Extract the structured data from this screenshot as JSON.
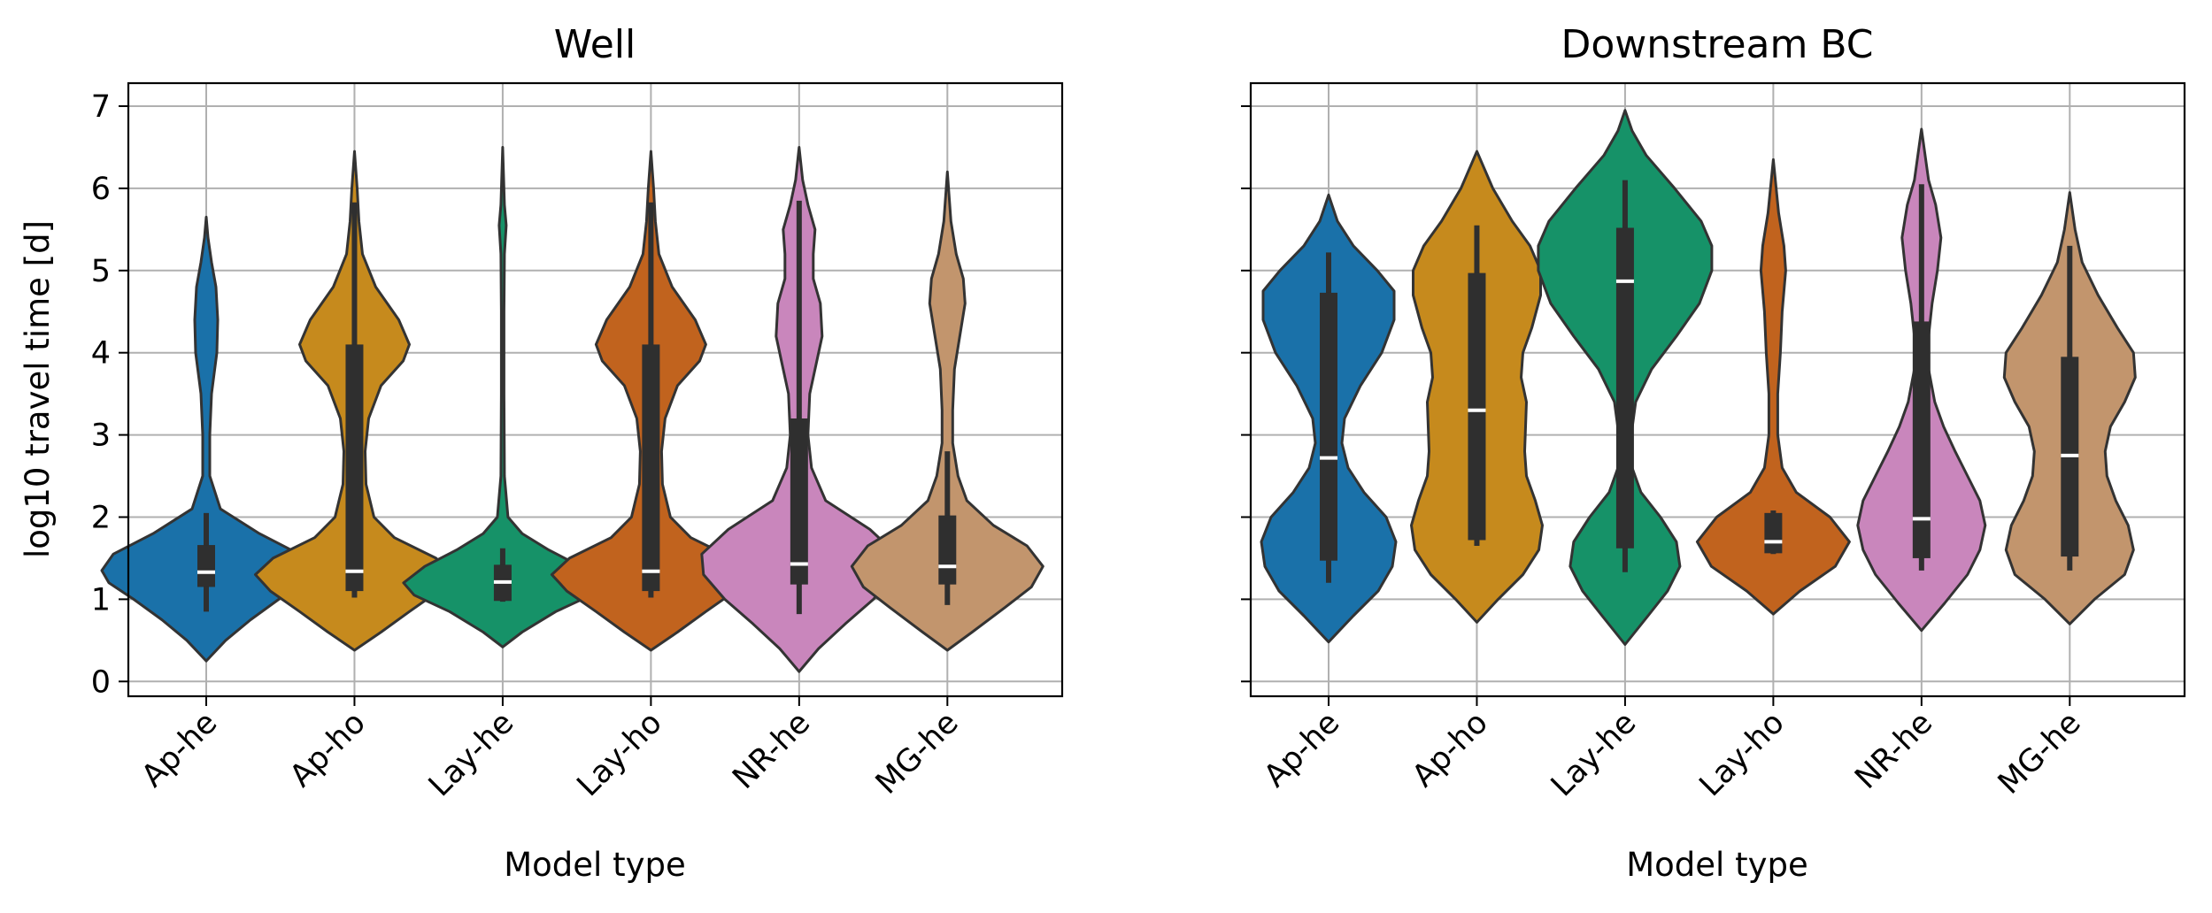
{
  "chart_data": [
    {
      "type": "violin",
      "title": "Well",
      "xlabel": "Model type",
      "ylabel": "log10 travel time [d]",
      "ylim": [
        -0.18,
        7.28
      ],
      "yticks": [
        0,
        1,
        2,
        3,
        4,
        5,
        6,
        7
      ],
      "grid": true,
      "categories": [
        "Ap-he",
        "Ap-ho",
        "Lay-he",
        "Lay-ho",
        "NR-he",
        "MG-he"
      ],
      "colors": [
        "#1a71a9",
        "#c68a1d",
        "#169268",
        "#c1631e",
        "#c986bc",
        "#c2956d"
      ],
      "violins": [
        {
          "min": 0.85,
          "q1": 1.15,
          "median": 1.33,
          "q3": 1.66,
          "max": 2.05,
          "range": [
            0.25,
            5.65
          ],
          "profile": [
            [
              0.25,
              0
            ],
            [
              0.5,
              22
            ],
            [
              0.75,
              50
            ],
            [
              1.0,
              82
            ],
            [
              1.2,
              110
            ],
            [
              1.35,
              118
            ],
            [
              1.55,
              105
            ],
            [
              1.8,
              60
            ],
            [
              2.1,
              16
            ],
            [
              2.5,
              4
            ],
            [
              3.0,
              4
            ],
            [
              3.5,
              6
            ],
            [
              4.0,
              12
            ],
            [
              4.4,
              13
            ],
            [
              4.8,
              11
            ],
            [
              5.1,
              6
            ],
            [
              5.4,
              2
            ],
            [
              5.65,
              0
            ]
          ]
        },
        {
          "min": 1.02,
          "q1": 1.1,
          "median": 1.34,
          "q3": 4.1,
          "max": 5.83,
          "range": [
            0.38,
            6.45
          ],
          "profile": [
            [
              0.38,
              0
            ],
            [
              0.6,
              30
            ],
            [
              0.85,
              62
            ],
            [
              1.1,
              95
            ],
            [
              1.3,
              112
            ],
            [
              1.5,
              92
            ],
            [
              1.75,
              45
            ],
            [
              2.0,
              22
            ],
            [
              2.4,
              13
            ],
            [
              2.8,
              12
            ],
            [
              3.2,
              16
            ],
            [
              3.6,
              30
            ],
            [
              3.9,
              55
            ],
            [
              4.1,
              62
            ],
            [
              4.4,
              50
            ],
            [
              4.8,
              24
            ],
            [
              5.2,
              9
            ],
            [
              5.6,
              5
            ],
            [
              6.0,
              3
            ],
            [
              6.45,
              0
            ]
          ]
        },
        {
          "min": 0.97,
          "q1": 0.98,
          "median": 1.21,
          "q3": 1.42,
          "max": 1.62,
          "range": [
            0.42,
            6.5
          ],
          "profile": [
            [
              0.42,
              0
            ],
            [
              0.6,
              22
            ],
            [
              0.85,
              60
            ],
            [
              1.05,
              100
            ],
            [
              1.2,
              112
            ],
            [
              1.4,
              88
            ],
            [
              1.6,
              52
            ],
            [
              1.8,
              22
            ],
            [
              2.0,
              6
            ],
            [
              2.5,
              2
            ],
            [
              3.5,
              1.5
            ],
            [
              4.5,
              1.5
            ],
            [
              5.2,
              2
            ],
            [
              5.55,
              4
            ],
            [
              5.8,
              2
            ],
            [
              6.5,
              0
            ]
          ]
        },
        {
          "min": 1.02,
          "q1": 1.1,
          "median": 1.34,
          "q3": 4.1,
          "max": 5.83,
          "range": [
            0.38,
            6.45
          ],
          "profile": [
            [
              0.38,
              0
            ],
            [
              0.6,
              30
            ],
            [
              0.85,
              62
            ],
            [
              1.1,
              95
            ],
            [
              1.3,
              112
            ],
            [
              1.5,
              92
            ],
            [
              1.75,
              45
            ],
            [
              2.0,
              22
            ],
            [
              2.4,
              13
            ],
            [
              2.8,
              12
            ],
            [
              3.2,
              16
            ],
            [
              3.6,
              30
            ],
            [
              3.9,
              55
            ],
            [
              4.1,
              62
            ],
            [
              4.4,
              50
            ],
            [
              4.8,
              24
            ],
            [
              5.2,
              9
            ],
            [
              5.6,
              5
            ],
            [
              6.0,
              3
            ],
            [
              6.45,
              0
            ]
          ]
        },
        {
          "min": 0.82,
          "q1": 1.18,
          "median": 1.43,
          "q3": 3.2,
          "max": 5.85,
          "range": [
            0.12,
            6.5
          ],
          "profile": [
            [
              0.12,
              0
            ],
            [
              0.4,
              22
            ],
            [
              0.7,
              52
            ],
            [
              1.0,
              84
            ],
            [
              1.3,
              108
            ],
            [
              1.55,
              110
            ],
            [
              1.85,
              80
            ],
            [
              2.2,
              30
            ],
            [
              2.6,
              14
            ],
            [
              3.0,
              10
            ],
            [
              3.5,
              12
            ],
            [
              3.9,
              20
            ],
            [
              4.2,
              26
            ],
            [
              4.6,
              24
            ],
            [
              4.9,
              16
            ],
            [
              5.2,
              16
            ],
            [
              5.5,
              18
            ],
            [
              5.8,
              10
            ],
            [
              6.1,
              4
            ],
            [
              6.5,
              0
            ]
          ]
        },
        {
          "min": 0.93,
          "q1": 1.18,
          "median": 1.4,
          "q3": 2.02,
          "max": 2.8,
          "range": [
            0.38,
            6.2
          ],
          "profile": [
            [
              0.38,
              0
            ],
            [
              0.6,
              28
            ],
            [
              0.9,
              65
            ],
            [
              1.15,
              95
            ],
            [
              1.4,
              108
            ],
            [
              1.65,
              90
            ],
            [
              1.9,
              52
            ],
            [
              2.2,
              22
            ],
            [
              2.5,
              12
            ],
            [
              2.9,
              6
            ],
            [
              3.3,
              6
            ],
            [
              3.8,
              8
            ],
            [
              4.2,
              14
            ],
            [
              4.6,
              20
            ],
            [
              4.9,
              18
            ],
            [
              5.2,
              10
            ],
            [
              5.6,
              4
            ],
            [
              6.2,
              0
            ]
          ]
        }
      ]
    },
    {
      "type": "violin",
      "title": "Downstream BC",
      "xlabel": "Model type",
      "ylim": [
        -0.18,
        7.28
      ],
      "yticks": [
        0,
        1,
        2,
        3,
        4,
        5,
        6,
        7
      ],
      "grid": true,
      "categories": [
        "Ap-he",
        "Ap-ho",
        "Lay-he",
        "Lay-ho",
        "NR-he",
        "MG-he"
      ],
      "colors": [
        "#1a71a9",
        "#c68a1d",
        "#169268",
        "#c1631e",
        "#c986bc",
        "#c2956d"
      ],
      "violins": [
        {
          "min": 1.2,
          "q1": 1.47,
          "median": 2.72,
          "q3": 4.73,
          "max": 5.22,
          "range": [
            0.48,
            5.92
          ],
          "profile": [
            [
              0.48,
              0
            ],
            [
              0.8,
              28
            ],
            [
              1.1,
              56
            ],
            [
              1.4,
              72
            ],
            [
              1.7,
              76
            ],
            [
              2.0,
              65
            ],
            [
              2.3,
              40
            ],
            [
              2.6,
              22
            ],
            [
              2.9,
              15
            ],
            [
              3.2,
              18
            ],
            [
              3.6,
              36
            ],
            [
              4.0,
              60
            ],
            [
              4.4,
              74
            ],
            [
              4.75,
              74
            ],
            [
              5.0,
              55
            ],
            [
              5.3,
              28
            ],
            [
              5.6,
              10
            ],
            [
              5.92,
              0
            ]
          ]
        },
        {
          "min": 1.65,
          "q1": 1.72,
          "median": 3.3,
          "q3": 4.97,
          "max": 5.55,
          "range": [
            0.72,
            6.45
          ],
          "profile": [
            [
              0.72,
              0
            ],
            [
              1.0,
              24
            ],
            [
              1.3,
              52
            ],
            [
              1.6,
              70
            ],
            [
              1.9,
              74
            ],
            [
              2.2,
              66
            ],
            [
              2.5,
              56
            ],
            [
              2.8,
              54
            ],
            [
              3.1,
              55
            ],
            [
              3.4,
              56
            ],
            [
              3.7,
              50
            ],
            [
              4.0,
              52
            ],
            [
              4.3,
              62
            ],
            [
              4.7,
              72
            ],
            [
              5.0,
              72
            ],
            [
              5.3,
              60
            ],
            [
              5.6,
              40
            ],
            [
              6.0,
              18
            ],
            [
              6.45,
              0
            ]
          ]
        },
        {
          "min": 1.33,
          "q1": 1.62,
          "median": 4.87,
          "q3": 5.52,
          "max": 6.1,
          "range": [
            0.45,
            6.95
          ],
          "profile": [
            [
              0.45,
              0
            ],
            [
              0.8,
              26
            ],
            [
              1.1,
              48
            ],
            [
              1.4,
              62
            ],
            [
              1.7,
              58
            ],
            [
              2.0,
              40
            ],
            [
              2.3,
              18
            ],
            [
              2.6,
              8
            ],
            [
              3.0,
              7
            ],
            [
              3.4,
              12
            ],
            [
              3.8,
              30
            ],
            [
              4.2,
              58
            ],
            [
              4.6,
              84
            ],
            [
              5.0,
              98
            ],
            [
              5.3,
              98
            ],
            [
              5.6,
              86
            ],
            [
              6.0,
              56
            ],
            [
              6.4,
              24
            ],
            [
              6.7,
              8
            ],
            [
              6.95,
              0
            ]
          ]
        },
        {
          "min": 1.55,
          "q1": 1.56,
          "median": 1.7,
          "q3": 2.05,
          "max": 2.08,
          "range": [
            0.82,
            6.35
          ],
          "profile": [
            [
              0.82,
              0
            ],
            [
              1.1,
              30
            ],
            [
              1.4,
              70
            ],
            [
              1.7,
              86
            ],
            [
              2.0,
              64
            ],
            [
              2.3,
              26
            ],
            [
              2.6,
              10
            ],
            [
              3.0,
              5
            ],
            [
              3.5,
              5
            ],
            [
              4.0,
              8
            ],
            [
              4.5,
              10
            ],
            [
              5.0,
              14
            ],
            [
              5.3,
              12
            ],
            [
              5.7,
              6
            ],
            [
              6.35,
              0
            ]
          ]
        },
        {
          "min": 1.35,
          "q1": 1.5,
          "median": 1.98,
          "q3": 4.38,
          "max": 6.05,
          "range": [
            0.62,
            6.72
          ],
          "profile": [
            [
              0.62,
              0
            ],
            [
              0.95,
              26
            ],
            [
              1.3,
              52
            ],
            [
              1.6,
              66
            ],
            [
              1.9,
              72
            ],
            [
              2.2,
              66
            ],
            [
              2.5,
              52
            ],
            [
              2.8,
              38
            ],
            [
              3.1,
              25
            ],
            [
              3.4,
              15
            ],
            [
              3.8,
              8
            ],
            [
              4.2,
              8
            ],
            [
              4.6,
              12
            ],
            [
              5.0,
              18
            ],
            [
              5.4,
              22
            ],
            [
              5.8,
              16
            ],
            [
              6.1,
              8
            ],
            [
              6.72,
              0
            ]
          ]
        },
        {
          "min": 1.35,
          "q1": 1.52,
          "median": 2.75,
          "q3": 3.95,
          "max": 5.3,
          "range": [
            0.7,
            5.95
          ],
          "profile": [
            [
              0.7,
              0
            ],
            [
              1.0,
              28
            ],
            [
              1.3,
              62
            ],
            [
              1.6,
              72
            ],
            [
              1.9,
              66
            ],
            [
              2.2,
              52
            ],
            [
              2.5,
              42
            ],
            [
              2.8,
              40
            ],
            [
              3.1,
              46
            ],
            [
              3.4,
              62
            ],
            [
              3.7,
              74
            ],
            [
              4.0,
              72
            ],
            [
              4.3,
              54
            ],
            [
              4.7,
              32
            ],
            [
              5.1,
              14
            ],
            [
              5.5,
              6
            ],
            [
              5.95,
              0
            ]
          ]
        }
      ]
    }
  ]
}
